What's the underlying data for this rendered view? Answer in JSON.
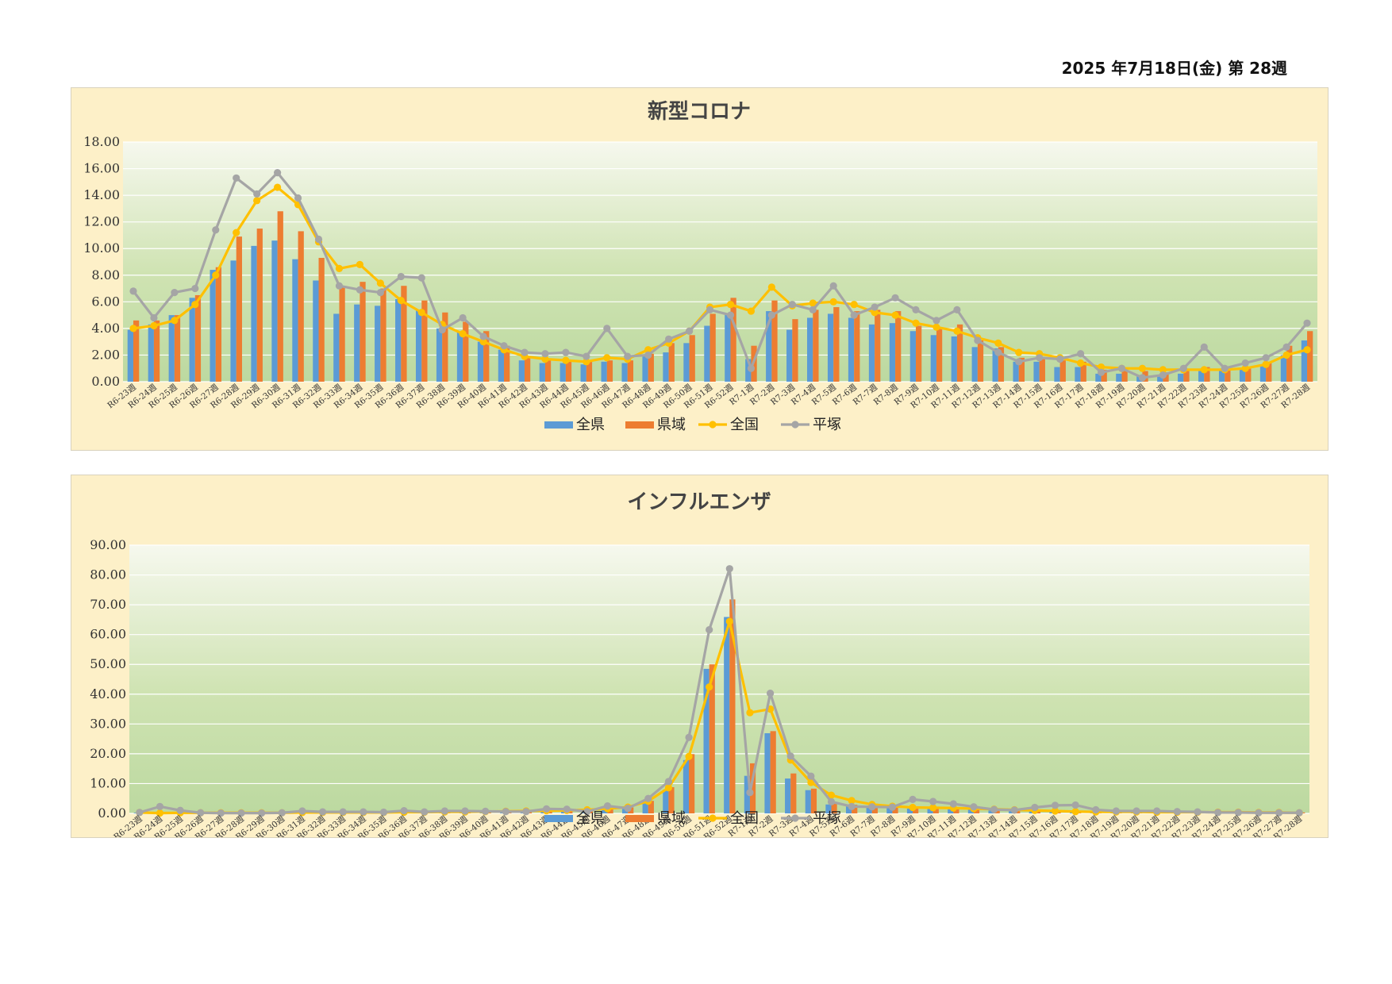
{
  "header": {
    "date_text": "2025 年7月18日(金) 第 28週"
  },
  "colors": {
    "全県": "#5b9bd5",
    "県域": "#ed7d31",
    "全国": "#ffc000",
    "平塚": "#a5a5a5",
    "panel_bg": "#fdf0c8"
  },
  "chart_data": [
    {
      "type": "bar",
      "title": "新型コロナ",
      "ylim": [
        0,
        18
      ],
      "yticks": [
        "0.00",
        "2.00",
        "4.00",
        "6.00",
        "8.00",
        "10.00",
        "12.00",
        "14.00",
        "16.00",
        "18.00"
      ],
      "grid": true,
      "legend_position": "bottom",
      "categories": [
        "R6-23週",
        "R6-24週",
        "R6-25週",
        "R6-26週",
        "R6-27週",
        "R6-28週",
        "R6-29週",
        "R6-30週",
        "R6-31週",
        "R6-32週",
        "R6-33週",
        "R6-34週",
        "R6-35週",
        "R6-36週",
        "R6-37週",
        "R6-38週",
        "R6-39週",
        "R6-40週",
        "R6-41週",
        "R6-42週",
        "R6-43週",
        "R6-44週",
        "R6-45週",
        "R6-46週",
        "R6-47週",
        "R6-48週",
        "R6-49週",
        "R6-50週",
        "R6-51週",
        "R6-52週",
        "R7-1週",
        "R7-2週",
        "R7-3週",
        "R7-4週",
        "R7-5週",
        "R7-6週",
        "R7-7週",
        "R7-8週",
        "R7-9週",
        "R7-10週",
        "R7-11週",
        "R7-12週",
        "R7-13週",
        "R7-14週",
        "R7-15週",
        "R7-16週",
        "R7-17週",
        "R7-18週",
        "R7-19週",
        "R7-20週",
        "R7-21週",
        "R7-22週",
        "R7-23週",
        "R7-24週",
        "R7-25週",
        "R7-26週",
        "R7-27週",
        "R7-28週"
      ],
      "series": [
        {
          "name": "全県",
          "kind": "bar",
          "values": [
            3.9,
            4.3,
            5.0,
            6.3,
            8.4,
            9.1,
            10.2,
            10.6,
            9.2,
            7.6,
            5.1,
            5.8,
            5.7,
            6.2,
            5.4,
            4.0,
            3.7,
            3.0,
            2.4,
            1.6,
            1.4,
            1.4,
            1.3,
            1.5,
            1.4,
            1.9,
            2.2,
            2.9,
            4.2,
            5.1,
            1.7,
            5.3,
            3.9,
            4.8,
            5.1,
            4.8,
            4.3,
            4.4,
            3.8,
            3.5,
            3.4,
            2.6,
            2.5,
            1.5,
            1.5,
            1.1,
            1.1,
            0.6,
            0.6,
            0.5,
            0.4,
            0.6,
            0.8,
            0.9,
            1.0,
            1.3,
            2.0,
            3.1
          ]
        },
        {
          "name": "県域",
          "kind": "bar",
          "values": [
            4.6,
            4.6,
            5.0,
            6.5,
            8.6,
            10.9,
            11.5,
            12.8,
            11.3,
            9.3,
            7.2,
            7.5,
            7.0,
            7.2,
            6.1,
            5.2,
            4.5,
            3.8,
            2.7,
            1.9,
            1.7,
            1.6,
            1.6,
            1.6,
            1.6,
            2.1,
            2.9,
            3.5,
            5.1,
            6.3,
            2.7,
            6.1,
            4.7,
            5.4,
            5.6,
            5.3,
            5.4,
            5.3,
            4.2,
            4.0,
            4.3,
            3.1,
            2.6,
            1.8,
            1.7,
            1.6,
            1.5,
            0.9,
            0.9,
            0.8,
            0.7,
            0.8,
            1.1,
            1.1,
            1.1,
            1.5,
            2.7,
            3.8
          ]
        },
        {
          "name": "全国",
          "kind": "line",
          "values": [
            4.0,
            4.2,
            4.6,
            5.8,
            8.0,
            11.2,
            13.6,
            14.6,
            13.3,
            10.5,
            8.5,
            8.8,
            7.4,
            6.1,
            5.2,
            4.3,
            3.6,
            3.0,
            2.4,
            1.9,
            1.7,
            1.6,
            1.5,
            1.8,
            1.7,
            2.4,
            2.9,
            3.8,
            5.6,
            5.8,
            5.3,
            7.1,
            5.7,
            5.9,
            6.0,
            5.8,
            5.2,
            5.0,
            4.4,
            4.1,
            3.8,
            3.3,
            2.9,
            2.2,
            2.1,
            1.8,
            1.4,
            1.1,
            1.0,
            1.0,
            0.9,
            0.9,
            0.9,
            0.9,
            1.0,
            1.3,
            2.0,
            2.4
          ]
        },
        {
          "name": "平塚",
          "kind": "line",
          "values": [
            6.8,
            4.8,
            6.7,
            7.0,
            11.4,
            15.3,
            14.1,
            15.7,
            13.8,
            10.7,
            7.2,
            6.9,
            6.7,
            7.9,
            7.8,
            3.9,
            4.8,
            3.4,
            2.7,
            2.2,
            2.1,
            2.2,
            1.9,
            4.0,
            1.9,
            2.0,
            3.2,
            3.8,
            5.4,
            5.0,
            1.0,
            5.0,
            5.8,
            5.4,
            7.2,
            5.0,
            5.6,
            6.3,
            5.4,
            4.6,
            5.4,
            3.1,
            2.2,
            1.5,
            1.8,
            1.7,
            2.1,
            0.7,
            1.0,
            0.3,
            0.5,
            1.0,
            2.6,
            1.0,
            1.4,
            1.8,
            2.6,
            4.4
          ]
        }
      ]
    },
    {
      "type": "bar",
      "title": "インフルエンザ",
      "ylim": [
        0,
        90
      ],
      "yticks": [
        "0.00",
        "10.00",
        "20.00",
        "30.00",
        "40.00",
        "50.00",
        "60.00",
        "70.00",
        "80.00",
        "90.00"
      ],
      "grid": true,
      "legend_position": "bottom",
      "categories": [
        "R6-23週",
        "R6-24週",
        "R6-25週",
        "R6-26週",
        "R6-27週",
        "R6-28週",
        "R6-29週",
        "R6-30週",
        "R6-31週",
        "R6-32週",
        "R6-33週",
        "R6-34週",
        "R6-35週",
        "R6-36週",
        "R6-37週",
        "R6-38週",
        "R6-39週",
        "R6-40週",
        "R6-41週",
        "R6-42週",
        "R6-43週",
        "R6-44週",
        "R6-45週",
        "R6-46週",
        "R6-47週",
        "R6-48週",
        "R6-49週",
        "R6-50週",
        "R6-51週",
        "R6-52週",
        "R7-1週",
        "R7-2週",
        "R7-3週",
        "R7-4週",
        "R7-5週",
        "R7-6週",
        "R7-7週",
        "R7-8週",
        "R7-9週",
        "R7-10週",
        "R7-11週",
        "R7-12週",
        "R7-13週",
        "R7-14週",
        "R7-15週",
        "R7-16週",
        "R7-17週",
        "R7-18週",
        "R7-19週",
        "R7-20週",
        "R7-21週",
        "R7-22週",
        "R7-23週",
        "R7-24週",
        "R7-25週",
        "R7-26週",
        "R7-27週",
        "R7-28週"
      ],
      "series": [
        {
          "name": "全県",
          "kind": "bar",
          "values": [
            0.2,
            0.3,
            0.2,
            0.2,
            0.2,
            0.2,
            0.2,
            0.2,
            0.3,
            0.2,
            0.2,
            0.2,
            0.2,
            0.3,
            0.3,
            0.3,
            0.3,
            0.4,
            0.5,
            0.5,
            0.6,
            0.6,
            0.7,
            1.2,
            1.6,
            3.4,
            8.0,
            17.9,
            48.5,
            65.9,
            12.6,
            26.9,
            11.7,
            7.8,
            3.0,
            2.4,
            2.0,
            1.8,
            1.6,
            1.5,
            1.4,
            1.3,
            1.0,
            0.8,
            0.8,
            0.7,
            0.6,
            0.4,
            0.4,
            0.3,
            0.3,
            0.3,
            0.2,
            0.2,
            0.2,
            0.2,
            0.2,
            0.2
          ]
        },
        {
          "name": "県域",
          "kind": "bar",
          "values": [
            0.3,
            0.4,
            0.3,
            0.3,
            0.3,
            0.3,
            0.3,
            0.3,
            0.4,
            0.3,
            0.3,
            0.3,
            0.3,
            0.4,
            0.4,
            0.4,
            0.4,
            0.5,
            0.6,
            0.6,
            0.7,
            0.8,
            0.9,
            1.5,
            2.0,
            4.2,
            8.8,
            19.9,
            50.0,
            71.8,
            16.8,
            27.6,
            13.4,
            8.3,
            3.8,
            2.9,
            2.3,
            2.1,
            1.9,
            1.8,
            1.7,
            1.5,
            1.2,
            1.0,
            0.9,
            0.9,
            0.7,
            0.5,
            0.5,
            0.4,
            0.4,
            0.4,
            0.3,
            0.3,
            0.3,
            0.3,
            0.3,
            0.3
          ]
        },
        {
          "name": "全国",
          "kind": "line",
          "values": [
            0.3,
            0.1,
            0.2,
            0.2,
            0.2,
            0.2,
            0.2,
            0.2,
            0.3,
            0.3,
            0.3,
            0.3,
            0.3,
            0.4,
            0.4,
            0.5,
            0.5,
            0.6,
            0.7,
            0.8,
            0.9,
            1.0,
            1.2,
            1.6,
            2.1,
            4.1,
            8.6,
            19.1,
            42.4,
            64.4,
            33.8,
            35.0,
            17.9,
            10.4,
            6.1,
            4.3,
            3.0,
            2.4,
            2.0,
            1.9,
            1.8,
            1.6,
            1.4,
            1.2,
            1.0,
            0.8,
            0.6,
            0.5,
            0.5,
            0.5,
            0.4,
            0.4,
            0.4,
            0.4,
            0.4,
            0.3,
            0.3,
            0.2
          ]
        },
        {
          "name": "平塚",
          "kind": "line",
          "values": [
            0.3,
            2.3,
            1.0,
            0.2,
            0.1,
            0.1,
            0.1,
            0.2,
            0.8,
            0.5,
            0.5,
            0.5,
            0.4,
            0.9,
            0.5,
            0.8,
            0.8,
            0.7,
            0.6,
            0.6,
            1.5,
            1.4,
            0.6,
            2.5,
            1.7,
            5.0,
            10.7,
            25.5,
            61.6,
            82.1,
            7.0,
            40.3,
            19.2,
            12.5,
            3.9,
            2.3,
            2.2,
            2.1,
            4.7,
            4.0,
            3.2,
            2.2,
            1.3,
            1.1,
            2.0,
            2.7,
            2.8,
            1.2,
            0.8,
            0.8,
            0.8,
            0.6,
            0.5,
            0.3,
            0.3,
            0.2,
            0.2,
            0.2
          ]
        }
      ]
    }
  ]
}
